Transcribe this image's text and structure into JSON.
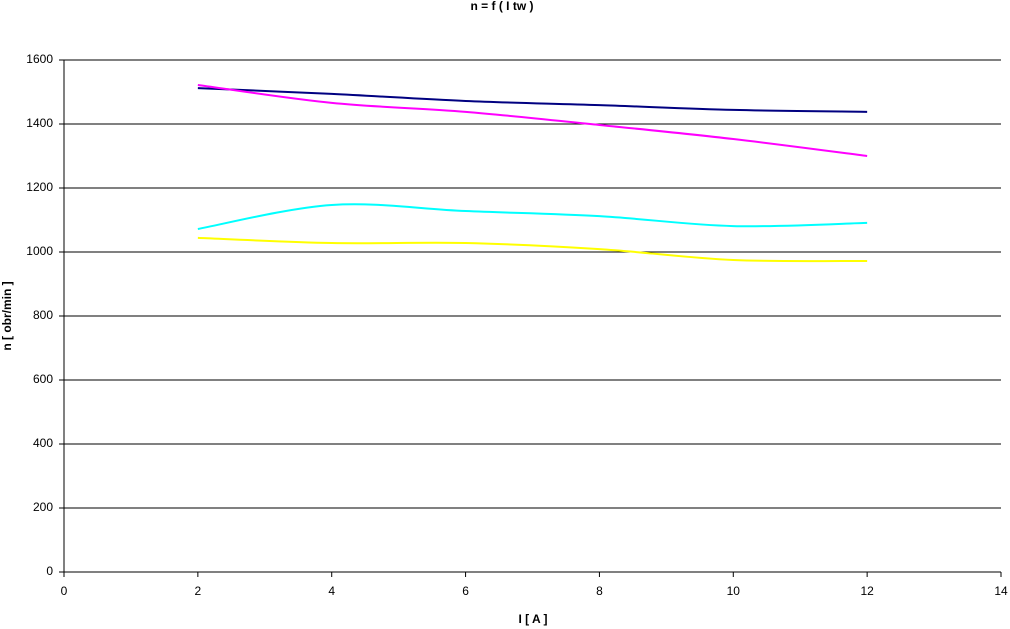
{
  "chart_data": {
    "type": "line",
    "title": "n = f ( I tw )",
    "x_label": "I [ A ]",
    "y_label": "n [ obr/min ]",
    "x": [
      2,
      4,
      6,
      8,
      10,
      12
    ],
    "series": [
      {
        "color": "#000080",
        "values": [
          1512,
          1494,
          1472,
          1459,
          1444,
          1438
        ]
      },
      {
        "color": "#ff00ff",
        "values": [
          1522,
          1466,
          1438,
          1397,
          1353,
          1300
        ]
      },
      {
        "color": "#00ffff",
        "values": [
          1072,
          1147,
          1128,
          1112,
          1081,
          1091
        ]
      },
      {
        "color": "#ffff00",
        "values": [
          1044,
          1028,
          1028,
          1009,
          975,
          972
        ]
      }
    ],
    "xlim": [
      0,
      14
    ],
    "xticks": [
      0,
      2,
      4,
      6,
      8,
      10,
      12,
      14
    ],
    "ylim": [
      0,
      1600
    ],
    "yticks": [
      0,
      200,
      400,
      600,
      800,
      1000,
      1200,
      1400,
      1600
    ],
    "grid": true
  }
}
